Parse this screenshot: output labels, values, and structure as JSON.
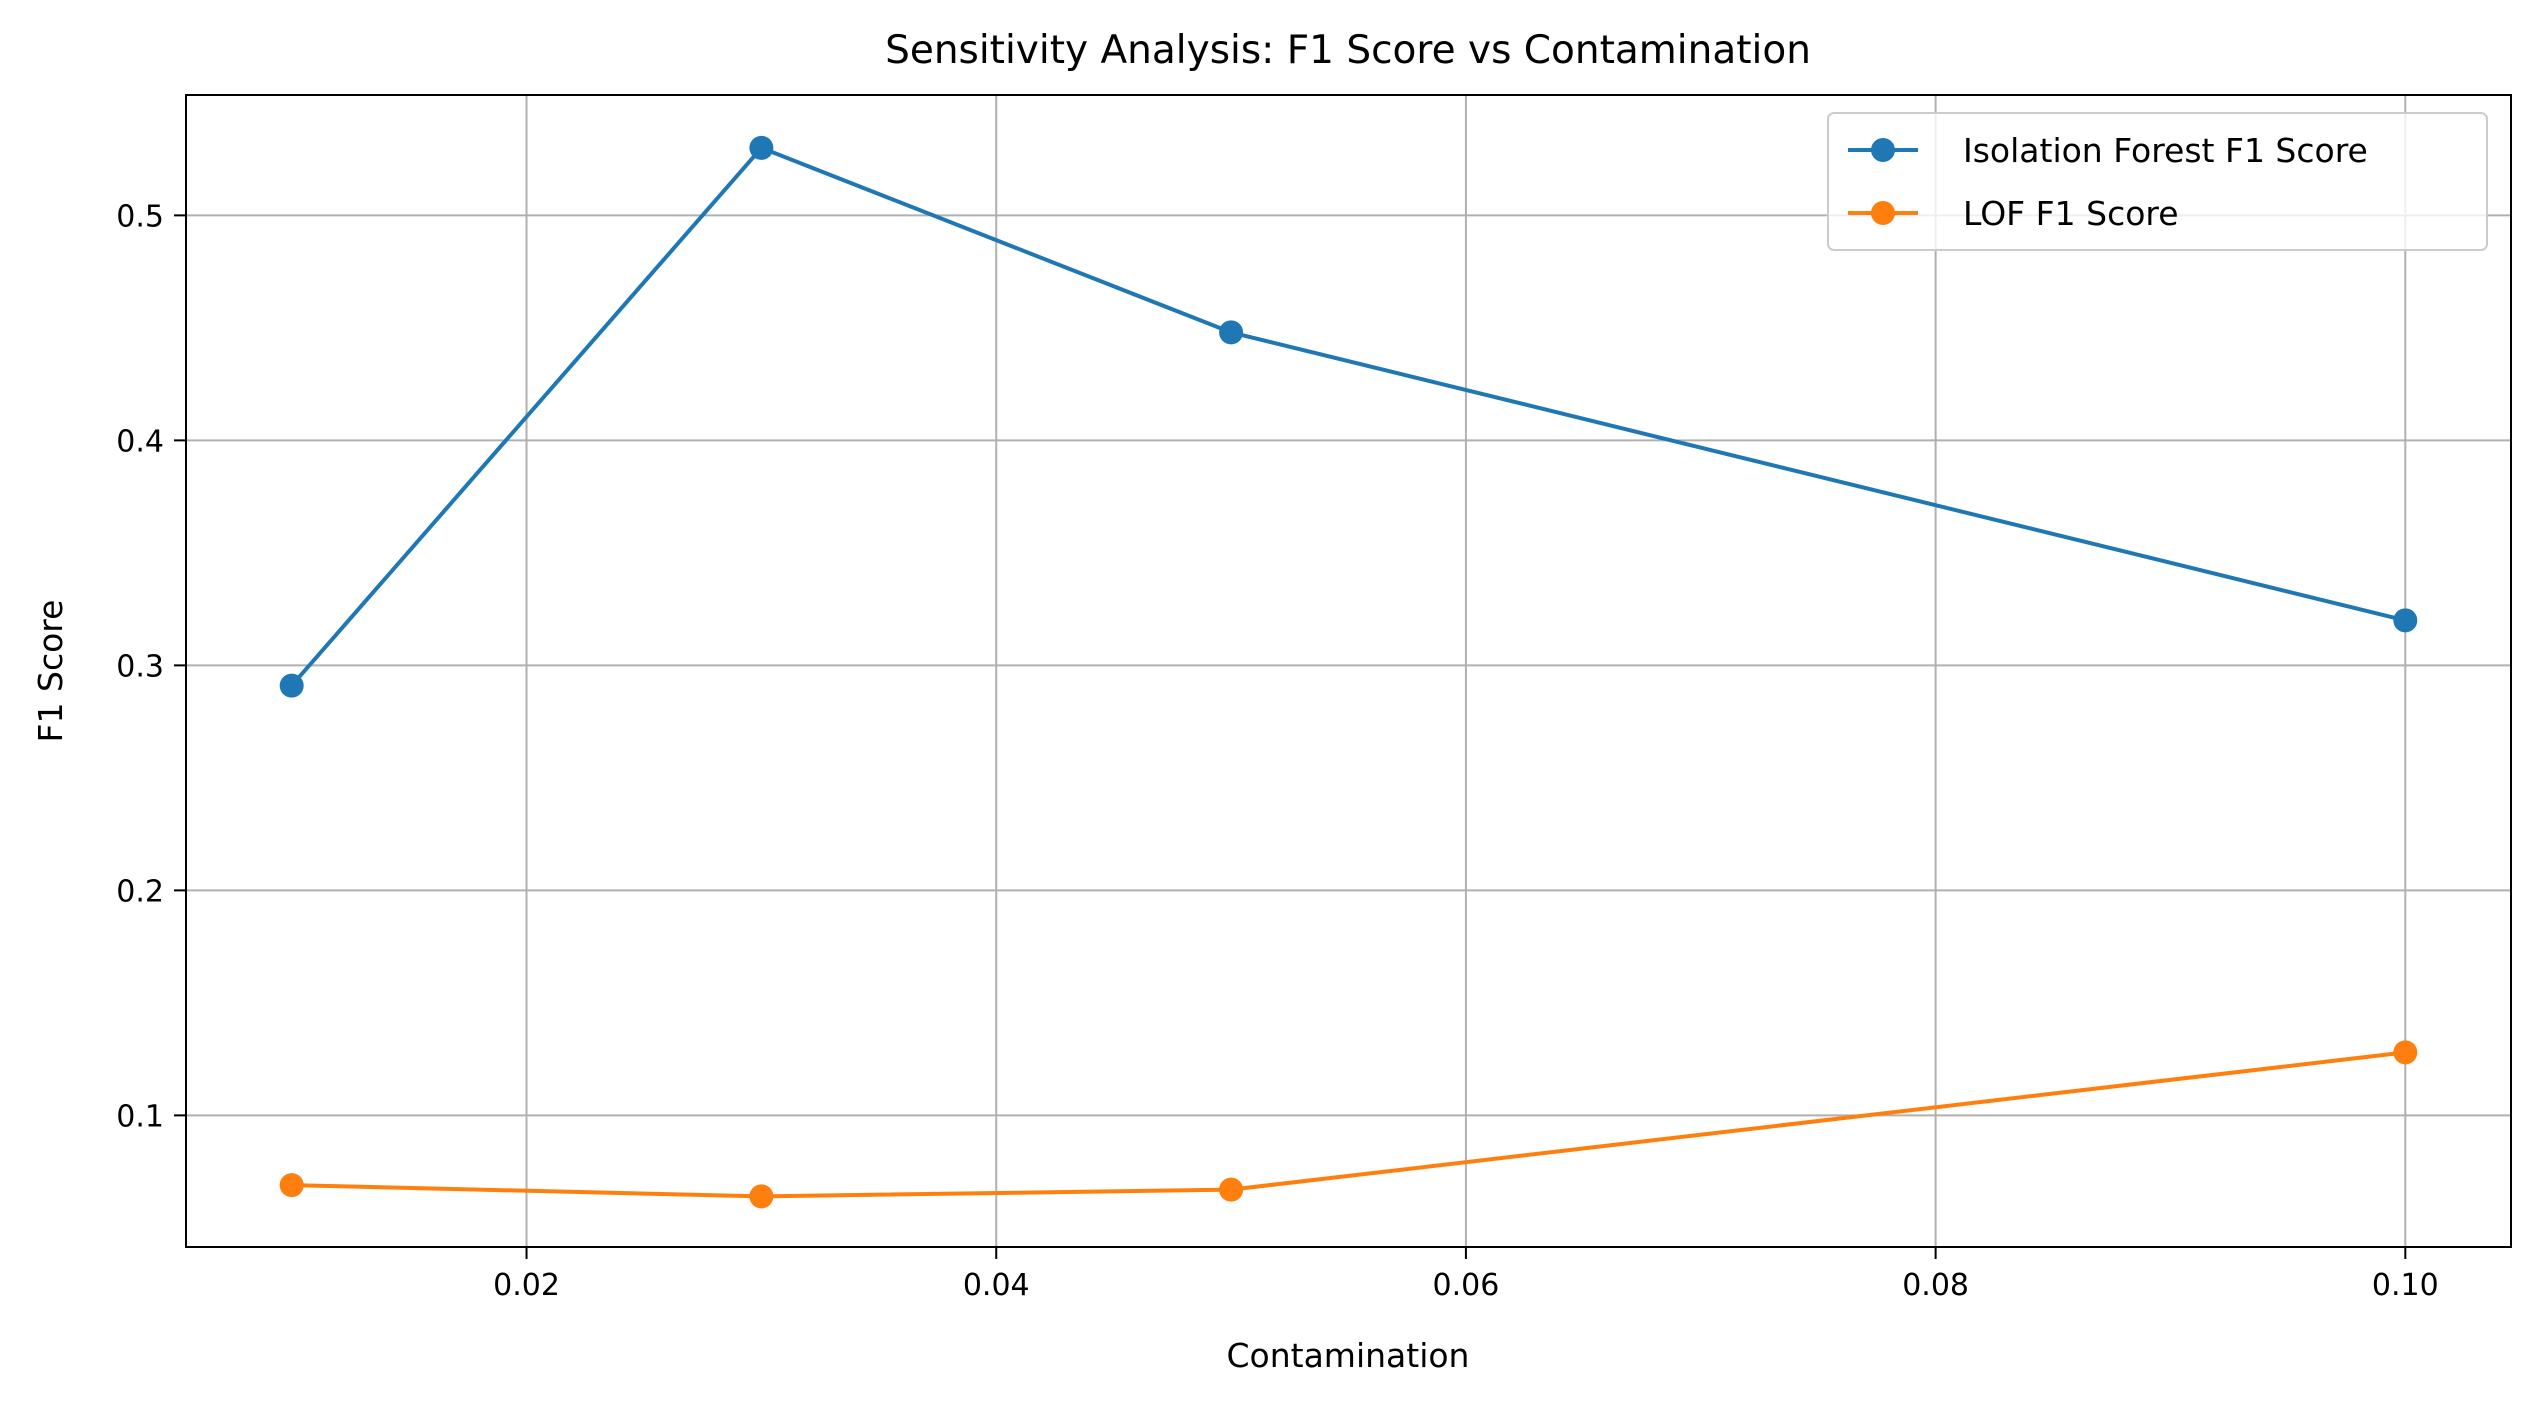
{
  "chart_data": {
    "type": "line",
    "title": "Sensitivity Analysis: F1 Score vs Contamination",
    "xlabel": "Contamination",
    "ylabel": "F1 Score",
    "x": [
      0.01,
      0.03,
      0.05,
      0.1
    ],
    "xlim": [
      0.0055,
      0.1045
    ],
    "ylim": [
      0.0415,
      0.5535
    ],
    "x_ticks": [
      0.02,
      0.04,
      0.06,
      0.08,
      0.1
    ],
    "x_tick_labels": [
      "0.02",
      "0.04",
      "0.06",
      "0.08",
      "0.10"
    ],
    "y_ticks": [
      0.1,
      0.2,
      0.3,
      0.4,
      0.5
    ],
    "y_tick_labels": [
      "0.1",
      "0.2",
      "0.3",
      "0.4",
      "0.5"
    ],
    "grid": true,
    "legend_position": "top-right",
    "series": [
      {
        "name": "Isolation Forest F1 Score",
        "color": "#1f77b4",
        "marker": "circle",
        "values": [
          0.291,
          0.53,
          0.448,
          0.32
        ]
      },
      {
        "name": "LOF F1 Score",
        "color": "#ff7f0e",
        "marker": "circle",
        "values": [
          0.069,
          0.064,
          0.067,
          0.128
        ]
      }
    ]
  }
}
